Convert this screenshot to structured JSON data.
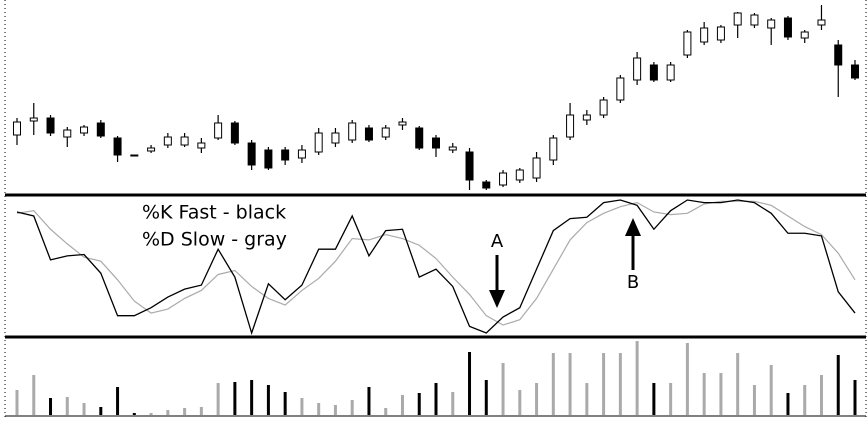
{
  "chart_data": [
    {
      "type": "candlestick",
      "up_color": "#ffffff",
      "down_color": "#000000",
      "ylim": [
        5,
        200
      ],
      "open": [
        65,
        79,
        82,
        63,
        67,
        77,
        62,
        45,
        49,
        55,
        55,
        52,
        62,
        77,
        57,
        50,
        50,
        42,
        48,
        57,
        60,
        72,
        63,
        75,
        72,
        62,
        50,
        48,
        18,
        15,
        20,
        22,
        40,
        63,
        80,
        85,
        100,
        120,
        135,
        120,
        145,
        158,
        160,
        175,
        175,
        172,
        182,
        162,
        175,
        155,
        135
      ],
      "high": [
        82,
        97,
        85,
        73,
        75,
        80,
        64,
        45,
        55,
        67,
        67,
        62,
        85,
        79,
        60,
        53,
        53,
        55,
        72,
        72,
        80,
        75,
        75,
        82,
        74,
        65,
        57,
        52,
        20,
        30,
        32,
        48,
        65,
        97,
        90,
        103,
        125,
        148,
        138,
        138,
        170,
        178,
        175,
        188,
        187,
        182,
        184,
        170,
        195,
        160,
        140
      ],
      "low": [
        55,
        65,
        64,
        53,
        64,
        62,
        38,
        44,
        47,
        52,
        53,
        47,
        60,
        55,
        30,
        30,
        35,
        37,
        45,
        53,
        57,
        58,
        60,
        70,
        50,
        43,
        47,
        10,
        10,
        13,
        17,
        18,
        35,
        60,
        75,
        82,
        97,
        115,
        118,
        118,
        142,
        155,
        157,
        162,
        172,
        155,
        160,
        157,
        170,
        103,
        120
      ],
      "close": [
        78,
        82,
        67,
        70,
        73,
        64,
        45,
        44,
        52,
        63,
        63,
        57,
        77,
        57,
        35,
        32,
        40,
        50,
        67,
        67,
        77,
        60,
        72,
        78,
        52,
        52,
        53,
        20,
        12,
        27,
        30,
        42,
        62,
        85,
        85,
        100,
        122,
        142,
        120,
        135,
        168,
        172,
        173,
        187,
        185,
        180,
        163,
        168,
        180,
        135,
        122
      ]
    },
    {
      "type": "line",
      "ylim": [
        0,
        100
      ],
      "series": [
        {
          "name": "%K Fast - black",
          "color": "#000000",
          "values": [
            91,
            88,
            55,
            58,
            59,
            45,
            13,
            13,
            19,
            27,
            33,
            36,
            63,
            42,
            0,
            37,
            25,
            36,
            63,
            63,
            88,
            58,
            77,
            78,
            42,
            48,
            35,
            5,
            0,
            12,
            19,
            48,
            77,
            86,
            87,
            98,
            100,
            96,
            78,
            92,
            100,
            98,
            98,
            100,
            98,
            90,
            75,
            75,
            73,
            31,
            15
          ]
        },
        {
          "name": "%D Slow - gray",
          "color": "#aaaaaa",
          "values": [
            90,
            92,
            78,
            67,
            57,
            54,
            40,
            24,
            15,
            18,
            26,
            32,
            44,
            47,
            35,
            26,
            21,
            32,
            41,
            54,
            71,
            70,
            74,
            71,
            66,
            56,
            42,
            29,
            13,
            6,
            10,
            26,
            48,
            70,
            83,
            90,
            95,
            98,
            91,
            89,
            90,
            97,
            99,
            99,
            99,
            96,
            88,
            80,
            74,
            60,
            40
          ]
        }
      ],
      "annotations": [
        "A",
        "B"
      ]
    },
    {
      "type": "bar",
      "ylim": [
        0,
        75
      ],
      "values": [
        25,
        40,
        17,
        18,
        12,
        8,
        28,
        2,
        2,
        5,
        7,
        8,
        32,
        33,
        35,
        30,
        23,
        17,
        12,
        10,
        15,
        28,
        7,
        20,
        22,
        32,
        23,
        63,
        35,
        52,
        25,
        32,
        62,
        62,
        32,
        62,
        62,
        74,
        32,
        32,
        72,
        42,
        42,
        62,
        30,
        50,
        22,
        30,
        40,
        60,
        35
      ]
    }
  ]
}
